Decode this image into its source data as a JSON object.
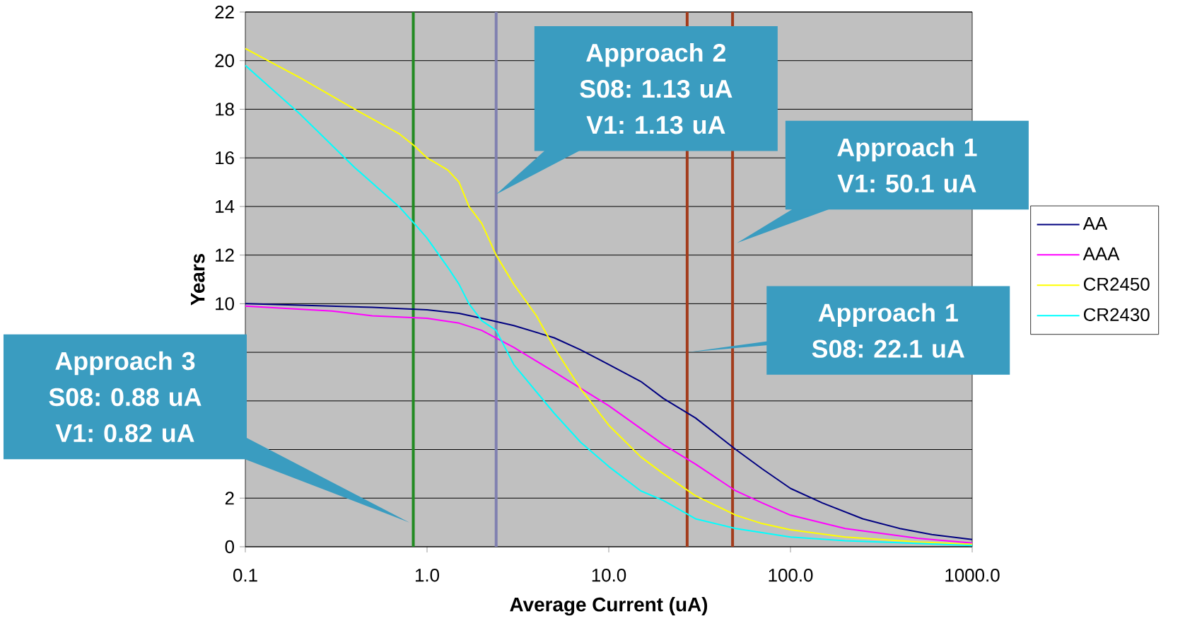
{
  "chart_data": {
    "type": "line",
    "xlabel": "Average Current (uA)",
    "ylabel": "Years",
    "log": "x",
    "grid": "y",
    "legend": "right",
    "marker": "none",
    "line_style": "solid",
    "xlim": [
      0.1,
      1000
    ],
    "ylim": [
      0,
      22
    ],
    "xticks": [
      {
        "value": 0.1,
        "label": "0.1"
      },
      {
        "value": 1,
        "label": "1.0"
      },
      {
        "value": 10,
        "label": "10.0"
      },
      {
        "value": 100,
        "label": "100.0"
      },
      {
        "value": 1000,
        "label": "1000.0"
      }
    ],
    "yticks": [
      0,
      2,
      {
        "value": 4,
        "label": null
      },
      {
        "value": 6,
        "label": null
      },
      {
        "value": 8,
        "label": null
      },
      10,
      12,
      14,
      16,
      18,
      20,
      22
    ],
    "series": [
      {
        "name": "AA",
        "color": "#000080",
        "x": [
          0.1,
          0.5,
          1,
          1.5,
          2,
          3,
          5,
          7,
          10,
          15,
          20,
          30,
          50,
          70,
          100,
          150,
          250,
          400,
          600,
          1000
        ],
        "values": [
          10.0,
          9.85,
          9.75,
          9.6,
          9.4,
          9.1,
          8.6,
          8.1,
          7.5,
          6.8,
          6.1,
          5.3,
          4.0,
          3.2,
          2.4,
          1.8,
          1.15,
          0.75,
          0.5,
          0.3
        ]
      },
      {
        "name": "AAA",
        "color": "#ff00ff",
        "x": [
          0.1,
          0.3,
          0.5,
          1,
          1.5,
          2,
          3,
          5,
          10,
          20,
          30,
          50,
          70,
          100,
          200,
          500,
          1000
        ],
        "values": [
          9.9,
          9.7,
          9.5,
          9.4,
          9.2,
          8.9,
          8.2,
          7.2,
          5.8,
          4.2,
          3.4,
          2.3,
          1.8,
          1.3,
          0.75,
          0.35,
          0.15
        ]
      },
      {
        "name": "CR2450",
        "color": "#ffff00",
        "x": [
          0.1,
          0.2,
          0.4,
          0.7,
          0.85,
          1,
          1.3,
          1.5,
          1.7,
          2,
          2.4,
          3,
          4,
          5,
          7,
          10,
          15,
          20,
          30,
          50,
          70,
          100,
          200,
          500,
          1000
        ],
        "values": [
          20.5,
          19.3,
          18.0,
          17.0,
          16.5,
          16.0,
          15.5,
          15.0,
          14.0,
          13.3,
          12.0,
          10.8,
          9.5,
          8.2,
          6.5,
          5.0,
          3.7,
          3.0,
          2.1,
          1.3,
          0.95,
          0.7,
          0.4,
          0.2,
          0.1
        ]
      },
      {
        "name": "CR2430",
        "color": "#00ffff",
        "x": [
          0.1,
          0.2,
          0.4,
          0.7,
          0.85,
          1,
          1.3,
          1.5,
          1.7,
          2,
          2.4,
          3,
          5,
          7,
          10,
          15,
          20,
          30,
          50,
          100,
          200,
          1000
        ],
        "values": [
          19.8,
          17.8,
          15.6,
          14.0,
          13.3,
          12.7,
          11.5,
          10.8,
          10.0,
          9.3,
          8.9,
          7.5,
          5.5,
          4.3,
          3.3,
          2.3,
          1.9,
          1.15,
          0.75,
          0.4,
          0.25,
          0.05
        ]
      }
    ],
    "ref_lines": [
      {
        "axis": "x",
        "value": 0.84,
        "color": "#228b22"
      },
      {
        "axis": "x",
        "value": 2.4,
        "color": "#8080b0"
      },
      {
        "axis": "x",
        "value": 27,
        "color": "#a33c1c"
      },
      {
        "axis": "x",
        "value": 48,
        "color": "#a33c1c"
      }
    ],
    "annotations": [
      "Approach 2 S08: 1.13 uA V1: 1.13 uA",
      {
        "text": "Approach 1 V1: 50.1 uA",
        "x": 50.8,
        "y": 12.5
      },
      {
        "text": "Approach 1 S08: 22.1 uA",
        "x": 27.2,
        "y": 8
      },
      {
        "text": "Approach 3 S08: 0.88 uA V1: 0.82 uA",
        "x": 0.8,
        "y": 1
      }
    ]
  }
}
